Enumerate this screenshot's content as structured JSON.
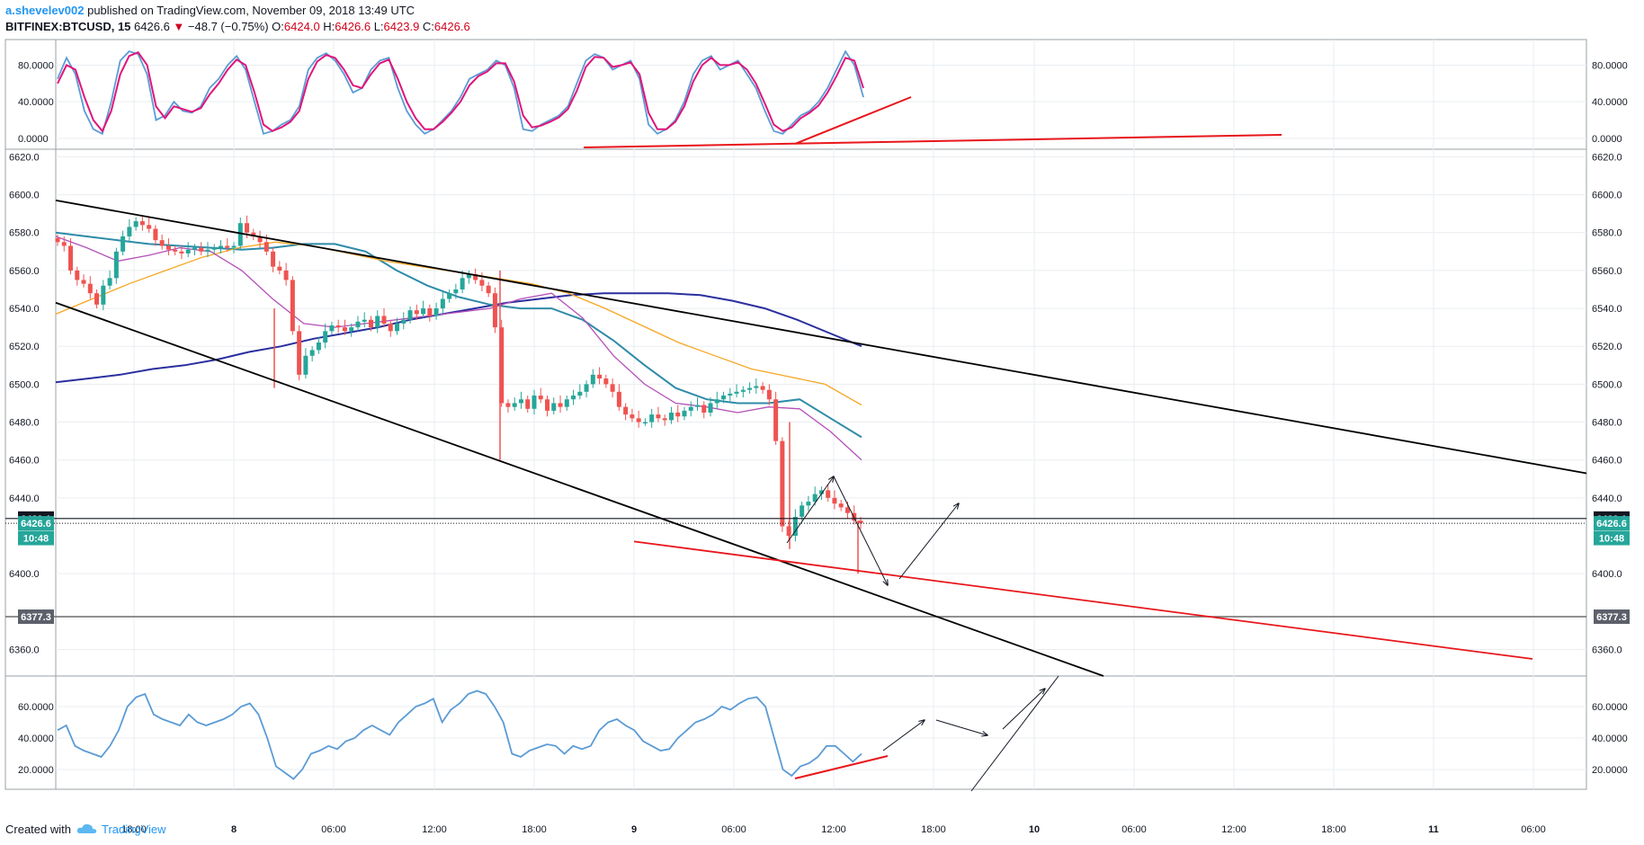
{
  "header": {
    "author": "a.shevelev002",
    "published_text": "published on TradingView.com, November 09, 2018 13:49 UTC",
    "symbol": "BITFINEX:BTCUSD, 15",
    "last": "6426.6",
    "change": "−48.7 (−0.75%)",
    "ohlc": [
      {
        "label": "O:",
        "value": "6424.0"
      },
      {
        "label": "H:",
        "value": "6426.6"
      },
      {
        "label": "L:",
        "value": "6423.9"
      },
      {
        "label": "C:",
        "value": "6426.6"
      }
    ]
  },
  "footer": {
    "created_with": "Created with",
    "brand": "TradingView",
    "brand_icon": "tradingview-cloud-icon"
  },
  "colors": {
    "up": "#26a69a",
    "down": "#ef5350",
    "stoch_k": "#5b9bd5",
    "stoch_d": "#e0157a",
    "rsi": "#5b9bd5",
    "ema_long": "#2a2f9e",
    "ema_mid": "#2e8ba8",
    "ema_orange": "#f5a623",
    "ema_purple": "#b44fb8",
    "ema_fast": "#2f8f8f",
    "trend": "#000000",
    "annotation_red": "#e8161b"
  },
  "chart_data": {
    "type": "candlestick",
    "x_tick_labels": [
      "18:00",
      "8",
      "06:00",
      "12:00",
      "18:00",
      "9",
      "06:00",
      "12:00",
      "18:00",
      "10",
      "06:00",
      "12:00",
      "18:00",
      "11",
      "06:00"
    ],
    "price_axis": {
      "ticks": [
        "6620.0",
        "6600.0",
        "6580.0",
        "6560.0",
        "6540.0",
        "6520.0",
        "6500.0",
        "6480.0",
        "6460.0",
        "6440.0",
        "6400.0",
        "6360.0"
      ],
      "range": [
        6346,
        6624
      ],
      "labels": [
        {
          "text": "6429.1",
          "price": 6429.1,
          "style": "black"
        },
        {
          "text": "6426.6",
          "price": 6426.6,
          "style": "teal"
        },
        {
          "text": "10:48",
          "price": 6418.8,
          "style": "teal"
        },
        {
          "text": "6377.3",
          "price": 6377.3,
          "style": "gray"
        }
      ],
      "horizontal_lines": [
        {
          "price": 6429.1,
          "style": "solid-black"
        },
        {
          "price": 6426.6,
          "style": "dotted"
        },
        {
          "price": 6377.3,
          "style": "solid-gray"
        }
      ]
    },
    "candles_close": [
      6575,
      6573,
      6560,
      6555,
      6553,
      6548,
      6542,
      6552,
      6556,
      6570,
      6578,
      6583,
      6586,
      6584,
      6582,
      6576,
      6573,
      6571,
      6570,
      6569,
      6571,
      6572,
      6570,
      6571,
      6572,
      6573,
      6572,
      6573,
      6585,
      6580,
      6578,
      6575,
      6570,
      6562,
      6560,
      6555,
      6528,
      6505,
      6515,
      6518,
      6522,
      6528,
      6531,
      6530,
      6528,
      6530,
      6533,
      6534,
      6530,
      6536,
      6532,
      6528,
      6532,
      6534,
      6539,
      6537,
      6540,
      6536,
      6540,
      6545,
      6548,
      6550,
      6556,
      6558,
      6555,
      6552,
      6548,
      6530,
      6490,
      6488,
      6490,
      6492,
      6487,
      6494,
      6492,
      6486,
      6490,
      6488,
      6492,
      6494,
      6496,
      6500,
      6505,
      6503,
      6500,
      6496,
      6488,
      6484,
      6482,
      6480,
      6480,
      6484,
      6482,
      6481,
      6485,
      6483,
      6486,
      6488,
      6489,
      6485,
      6490,
      6492,
      6494,
      6495,
      6496,
      6497,
      6498,
      6499,
      6497,
      6492,
      6470,
      6425,
      6420,
      6430,
      6436,
      6438,
      6442,
      6444,
      6440,
      6437,
      6435,
      6432,
      6428,
      6426.6
    ],
    "stochastic": {
      "ticks": [
        "80.0000",
        "40.0000",
        "0.0000"
      ],
      "range": [
        -4,
        104
      ],
      "k": [
        65,
        88,
        70,
        30,
        10,
        5,
        40,
        85,
        95,
        92,
        70,
        20,
        25,
        40,
        30,
        28,
        35,
        55,
        65,
        80,
        90,
        75,
        40,
        5,
        8,
        15,
        20,
        35,
        75,
        88,
        93,
        85,
        70,
        50,
        55,
        75,
        85,
        88,
        55,
        30,
        15,
        5,
        10,
        20,
        30,
        45,
        65,
        70,
        75,
        85,
        80,
        55,
        10,
        8,
        15,
        20,
        25,
        35,
        60,
        85,
        92,
        88,
        75,
        80,
        85,
        65,
        15,
        5,
        10,
        20,
        40,
        70,
        85,
        90,
        75,
        80,
        85,
        70,
        55,
        30,
        8,
        5,
        15,
        25,
        30,
        40,
        55,
        75,
        95,
        80,
        45
      ],
      "d": [
        60,
        80,
        75,
        45,
        20,
        8,
        30,
        70,
        90,
        94,
        80,
        35,
        22,
        35,
        32,
        29,
        33,
        48,
        60,
        75,
        86,
        80,
        50,
        15,
        8,
        12,
        18,
        30,
        65,
        84,
        91,
        88,
        75,
        58,
        55,
        70,
        82,
        86,
        65,
        40,
        22,
        10,
        10,
        18,
        28,
        40,
        58,
        68,
        73,
        82,
        82,
        62,
        25,
        12,
        14,
        18,
        23,
        32,
        52,
        78,
        89,
        88,
        78,
        80,
        83,
        70,
        28,
        10,
        10,
        18,
        35,
        62,
        80,
        88,
        80,
        80,
        83,
        75,
        60,
        38,
        15,
        8,
        12,
        22,
        28,
        36,
        50,
        68,
        88,
        85,
        55
      ]
    },
    "rsi": {
      "ticks": [
        "60.0000",
        "40.0000",
        "20.0000"
      ],
      "range": [
        12,
        76
      ],
      "values": [
        45,
        48,
        35,
        32,
        30,
        28,
        35,
        45,
        60,
        66,
        68,
        55,
        52,
        50,
        48,
        55,
        50,
        48,
        50,
        52,
        55,
        60,
        62,
        55,
        40,
        22,
        18,
        14,
        20,
        30,
        32,
        35,
        33,
        38,
        40,
        45,
        48,
        45,
        42,
        50,
        55,
        60,
        62,
        65,
        50,
        58,
        62,
        68,
        70,
        68,
        60,
        50,
        30,
        28,
        32,
        34,
        36,
        35,
        30,
        35,
        33,
        35,
        45,
        50,
        52,
        48,
        45,
        38,
        35,
        32,
        33,
        40,
        45,
        50,
        52,
        55,
        60,
        58,
        62,
        65,
        66,
        60,
        40,
        20,
        16,
        22,
        24,
        28,
        35,
        35,
        30,
        25,
        30
      ]
    },
    "moving_averages": [
      {
        "color": "ema_long",
        "values": [
          6501,
          6503,
          6505,
          6508,
          6510,
          6513,
          6517,
          6520,
          6524,
          6527,
          6530,
          6534,
          6537,
          6540,
          6543,
          6545,
          6547,
          6548,
          6548,
          6548,
          6547,
          6544,
          6540,
          6534,
          6527,
          6520
        ]
      },
      {
        "color": "ema_mid",
        "values": [
          6580,
          6578,
          6576,
          6574,
          6573,
          6572,
          6571,
          6572,
          6574,
          6574,
          6570,
          6560,
          6552,
          6546,
          6542,
          6540,
          6540,
          6534,
          6523,
          6510,
          6498,
          6492,
          6490,
          6490,
          6492,
          6482,
          6472
        ]
      },
      {
        "color": "ema_orange",
        "values": [
          6537,
          6545,
          6553,
          6560,
          6567,
          6572,
          6575,
          6573,
          6569,
          6565,
          6562,
          6559,
          6556,
          6553,
          6548,
          6540,
          6531,
          6522,
          6515,
          6508,
          6504,
          6500,
          6489
        ]
      },
      {
        "color": "ema_purple",
        "values": [
          6578,
          6572,
          6565,
          6568,
          6572,
          6570,
          6560,
          6545,
          6532,
          6530,
          6532,
          6534,
          6536,
          6538,
          6540,
          6545,
          6548,
          6535,
          6515,
          6500,
          6490,
          6488,
          6485,
          6488,
          6487,
          6475,
          6460
        ]
      }
    ],
    "annotations": {
      "trend_lines": [
        "upper-channel",
        "lower-channel"
      ],
      "red_lines": [
        "stoch-support",
        "stoch-rising",
        "price-support",
        "rsi-rising"
      ],
      "arrows": [
        "projected-path"
      ]
    }
  }
}
